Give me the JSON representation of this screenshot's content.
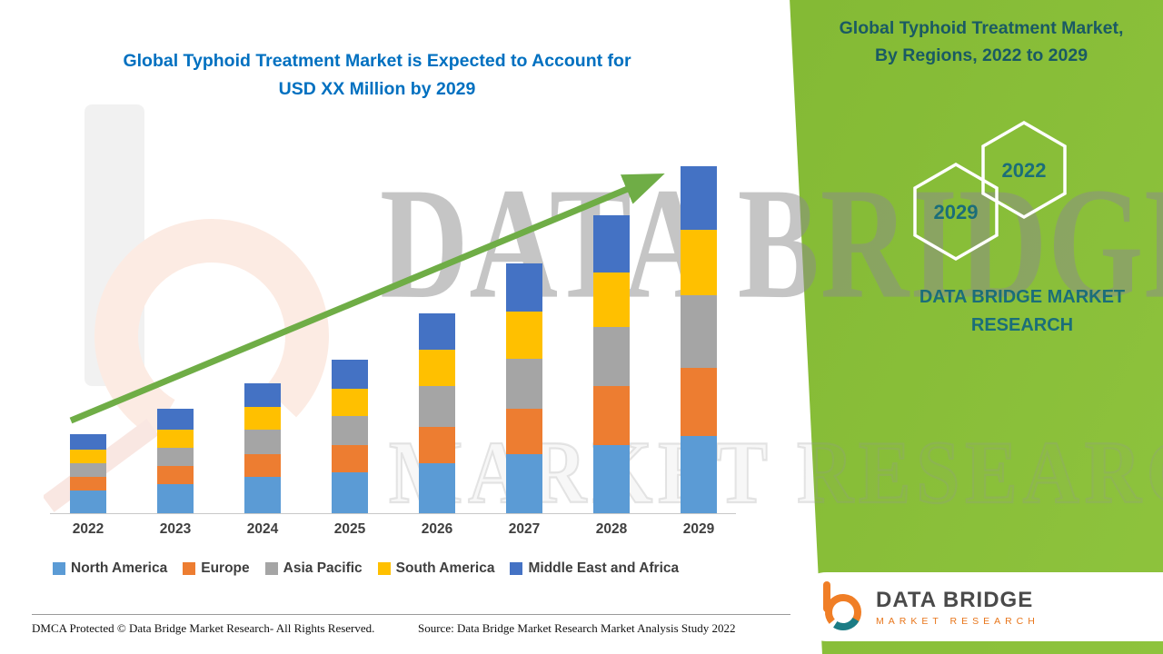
{
  "header": {
    "chart_title_line1": "Global Typhoid Treatment Market is Expected to Account for",
    "chart_title_line2": "USD XX Million by 2029"
  },
  "side_panel": {
    "title_line1": "Global Typhoid Treatment Market,",
    "title_line2": "By Regions, 2022 to 2029",
    "hexagons": [
      {
        "label": "2029"
      },
      {
        "label": "2022"
      }
    ],
    "brand_line1": "DATA BRIDGE MARKET",
    "brand_line2": "RESEARCH"
  },
  "watermark": {
    "line1": "DATA BRIDGE",
    "line2": "MARKET RESEARCH"
  },
  "footer": {
    "dmca": "DMCA Protected © Data Bridge Market Research- All Rights Reserved.",
    "source": "Source: Data Bridge Market Research Market Analysis Study 2022"
  },
  "logo_card": {
    "name": "DATA BRIDGE",
    "subtitle": "MARKET RESEARCH"
  },
  "colors": {
    "title_blue": "#0070C0",
    "panel_green": "#8CC63F",
    "arrow_green": "#6FAD46",
    "teal_text": "#1B6E79"
  },
  "chart_data": {
    "type": "bar",
    "stacked": true,
    "title": "Global Typhoid Treatment Market is Expected to Account for USD XX Million by 2029",
    "xlabel": "",
    "ylabel": "",
    "value_scale": "relative units (y-axis not labeled in figure; values estimated from bar heights)",
    "ylim": [
      0,
      400
    ],
    "grid": false,
    "legend_position": "bottom",
    "trend_arrow": true,
    "categories": [
      "2022",
      "2023",
      "2024",
      "2025",
      "2026",
      "2027",
      "2028",
      "2029"
    ],
    "series": [
      {
        "name": "North America",
        "color": "#5B9BD5",
        "values": [
          25,
          32,
          40,
          45,
          55,
          65,
          75,
          85
        ]
      },
      {
        "name": "Europe",
        "color": "#ED7D31",
        "values": [
          15,
          20,
          25,
          30,
          40,
          50,
          65,
          75
        ]
      },
      {
        "name": "Asia Pacific",
        "color": "#A5A5A5",
        "values": [
          15,
          20,
          27,
          32,
          45,
          55,
          65,
          80
        ]
      },
      {
        "name": "South America",
        "color": "#FFC000",
        "values": [
          15,
          20,
          25,
          30,
          40,
          52,
          60,
          72
        ]
      },
      {
        "name": "Middle East and Africa",
        "color": "#4472C4",
        "values": [
          17,
          23,
          26,
          32,
          40,
          53,
          63,
          70
        ]
      }
    ]
  }
}
